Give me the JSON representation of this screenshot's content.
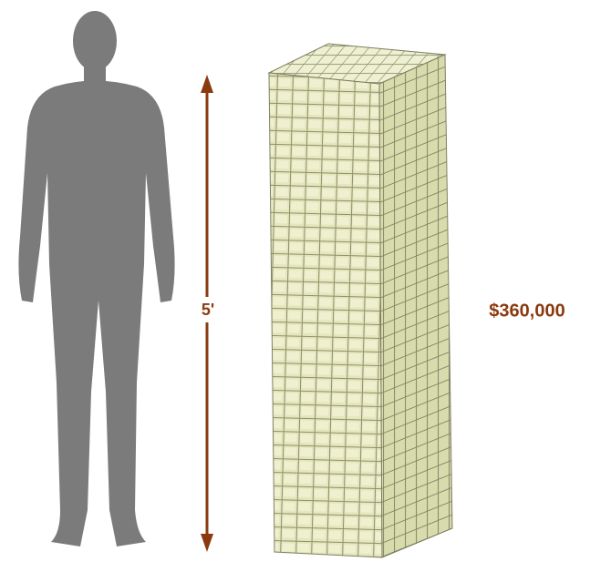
{
  "labels": {
    "height": "5'",
    "amount": "$360,000"
  }
}
